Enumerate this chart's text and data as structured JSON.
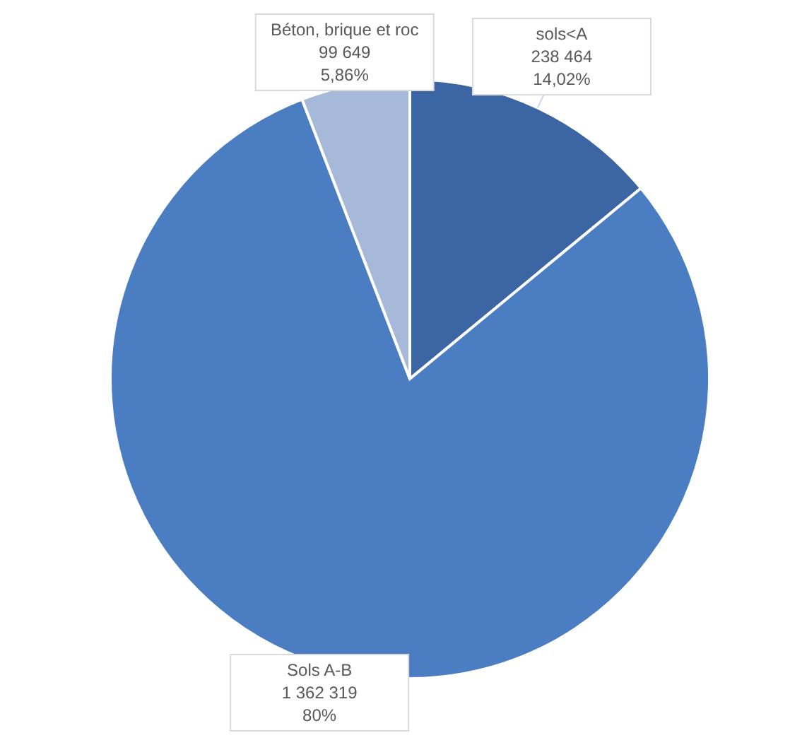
{
  "chart_data": {
    "type": "pie",
    "categories": [
      "sols<A",
      "Sols A-B",
      "Béton, brique et roc"
    ],
    "values": [
      238464,
      1362319,
      99649
    ],
    "colors": [
      "#3b65a3",
      "#4a7dc1",
      "#a7b9d9"
    ],
    "value_labels": [
      "238 464\n14,02%",
      "1 362 319\n80%",
      "99 649\n5,86%"
    ]
  }
}
